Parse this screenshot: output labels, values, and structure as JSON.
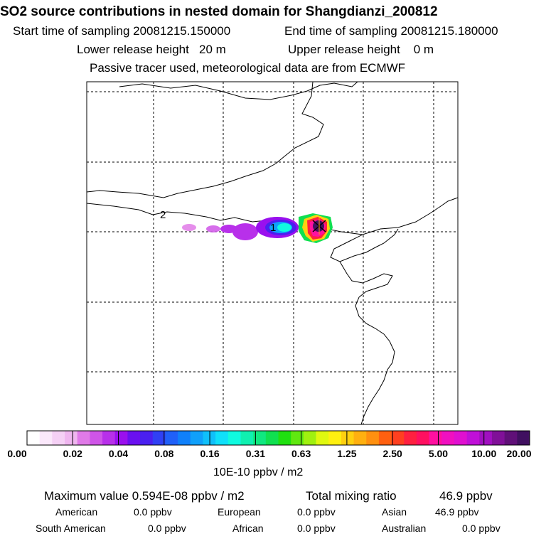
{
  "header": {
    "title": "SO2 source contributions in nested domain for Shangdianzi_200812",
    "start_label": "Start time of sampling 20081215.150000",
    "end_label": "End time of sampling 20081215.180000",
    "lower_label": "Lower release height   20 m",
    "upper_label": "Upper release height    0 m",
    "tracer_note": "Passive tracer used, meteorological data are from ECMWF"
  },
  "chart_data": {
    "type": "heatmap",
    "title": "SO2 source contributions in nested domain for Shangdianzi_200812",
    "colorbar": {
      "ticks": [
        "0.00",
        "0.02",
        "0.04",
        "0.08",
        "0.16",
        "0.31",
        "0.63",
        "1.25",
        "2.50",
        "5.00",
        "10.00",
        "20.00"
      ],
      "units": "10E-10 ppbv / m2",
      "colors": [
        "#ffffff",
        "#fbe8fb",
        "#f5d0f5",
        "#efb6ef",
        "#e07ae8",
        "#cf55e8",
        "#b830ea",
        "#9a10ee",
        "#6a10f0",
        "#4a20f0",
        "#3040f4",
        "#2060f8",
        "#1080fa",
        "#10a0fa",
        "#10c0fa",
        "#10e0fa",
        "#10fae0",
        "#10f0b0",
        "#10e880",
        "#10e050",
        "#20e010",
        "#60e810",
        "#a0f010",
        "#e0f810",
        "#fff010",
        "#ffd010",
        "#ffb010",
        "#ff9010",
        "#ff6010",
        "#ff4020",
        "#ff2040",
        "#ff1060",
        "#ff10a0",
        "#f010c0",
        "#e010d0",
        "#c010d8",
        "#a010c0",
        "#801098",
        "#601078",
        "#401060"
      ]
    },
    "plume_markers": [
      "1",
      "2"
    ],
    "receptor": "Shangdianzi"
  },
  "stats": {
    "max_label": "Maximum value  0.594E-08 ppbv / m2",
    "total_label": "Total mixing ratio",
    "total_value": "46.9 ppbv",
    "regions": [
      {
        "name": "American",
        "value": "0.0 ppbv"
      },
      {
        "name": "European",
        "value": "0.0 ppbv"
      },
      {
        "name": "Asian",
        "value": "46.9 ppbv"
      },
      {
        "name": "South American",
        "value": "0.0 ppbv"
      },
      {
        "name": "African",
        "value": "0.0 ppbv"
      },
      {
        "name": "Australian",
        "value": "0.0 ppbv"
      }
    ]
  }
}
